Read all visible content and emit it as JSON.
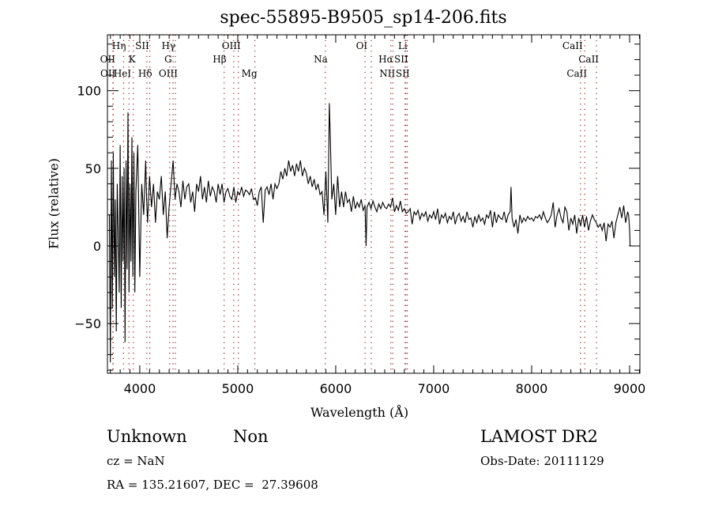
{
  "chart_data": {
    "type": "line",
    "title": "spec-55895-B9505_sp14-206.fits",
    "xlabel": "Wavelength (Å)",
    "ylabel": "Flux (relative)",
    "xlim": [
      3670,
      9105
    ],
    "ylim": [
      -82,
      136
    ],
    "xticks": [
      4000,
      5000,
      6000,
      7000,
      8000,
      9000
    ],
    "yticks": [
      -50,
      0,
      50,
      100
    ],
    "grid": false,
    "line_color": "#000000",
    "marker_color": "#8b1a1a",
    "series": [
      {
        "name": "spectrum",
        "x": [
          3690,
          3700,
          3710,
          3720,
          3730,
          3740,
          3750,
          3760,
          3770,
          3780,
          3790,
          3800,
          3810,
          3820,
          3830,
          3840,
          3850,
          3860,
          3870,
          3880,
          3890,
          3900,
          3910,
          3920,
          3930,
          3940,
          3950,
          3960,
          3980,
          4000,
          4020,
          4040,
          4060,
          4070,
          4080,
          4100,
          4120,
          4140,
          4160,
          4180,
          4200,
          4220,
          4240,
          4260,
          4280,
          4300,
          4320,
          4340,
          4360,
          4380,
          4400,
          4420,
          4440,
          4460,
          4480,
          4500,
          4520,
          4540,
          4560,
          4580,
          4600,
          4620,
          4640,
          4660,
          4680,
          4700,
          4720,
          4740,
          4760,
          4780,
          4800,
          4820,
          4840,
          4860,
          4880,
          4900,
          4920,
          4940,
          4960,
          4980,
          5000,
          5020,
          5040,
          5060,
          5080,
          5100,
          5120,
          5140,
          5160,
          5180,
          5200,
          5220,
          5240,
          5260,
          5280,
          5300,
          5320,
          5340,
          5360,
          5380,
          5400,
          5420,
          5440,
          5460,
          5480,
          5500,
          5520,
          5540,
          5560,
          5580,
          5600,
          5620,
          5640,
          5660,
          5680,
          5700,
          5720,
          5740,
          5760,
          5780,
          5800,
          5820,
          5840,
          5860,
          5880,
          5900,
          5920,
          5935,
          5945,
          5960,
          5980,
          6000,
          6020,
          6040,
          6060,
          6080,
          6100,
          6120,
          6140,
          6160,
          6180,
          6200,
          6220,
          6240,
          6260,
          6280,
          6300,
          6310,
          6320,
          6340,
          6360,
          6380,
          6400,
          6420,
          6440,
          6460,
          6480,
          6500,
          6520,
          6540,
          6560,
          6580,
          6600,
          6620,
          6640,
          6660,
          6680,
          6700,
          6720,
          6740,
          6760,
          6780,
          6800,
          6820,
          6840,
          6860,
          6880,
          6900,
          6920,
          6940,
          6960,
          6980,
          7000,
          7020,
          7040,
          7060,
          7080,
          7100,
          7120,
          7140,
          7160,
          7180,
          7200,
          7220,
          7240,
          7260,
          7280,
          7300,
          7320,
          7340,
          7360,
          7380,
          7400,
          7420,
          7440,
          7460,
          7480,
          7500,
          7520,
          7540,
          7560,
          7580,
          7600,
          7620,
          7640,
          7660,
          7680,
          7700,
          7720,
          7740,
          7760,
          7780,
          7790,
          7800,
          7820,
          7840,
          7860,
          7880,
          7900,
          7920,
          7940,
          7960,
          7980,
          8000,
          8020,
          8040,
          8060,
          8080,
          8100,
          8120,
          8140,
          8160,
          8180,
          8200,
          8220,
          8240,
          8260,
          8280,
          8300,
          8320,
          8340,
          8360,
          8380,
          8400,
          8420,
          8440,
          8460,
          8480,
          8500,
          8520,
          8540,
          8560,
          8580,
          8600,
          8620,
          8640,
          8660,
          8680,
          8700,
          8720,
          8740,
          8760,
          8780,
          8800,
          8820,
          8840,
          8860,
          8880,
          8900,
          8920,
          8940,
          8960,
          8980,
          8990,
          9000,
          9005
        ],
        "y": [
          20,
          -75,
          55,
          -40,
          60,
          -20,
          30,
          -55,
          40,
          10,
          -30,
          65,
          -40,
          45,
          -10,
          50,
          -62,
          55,
          -15,
          86,
          -30,
          40,
          -10,
          70,
          -20,
          60,
          -30,
          35,
          65,
          -20,
          40,
          20,
          55,
          30,
          15,
          45,
          25,
          40,
          15,
          35,
          30,
          45,
          20,
          35,
          5,
          25,
          40,
          55,
          30,
          40,
          35,
          25,
          42,
          30,
          38,
          40,
          28,
          35,
          22,
          40,
          35,
          45,
          30,
          38,
          28,
          42,
          32,
          38,
          35,
          28,
          40,
          33,
          40,
          28,
          35,
          37,
          32,
          30,
          38,
          28,
          35,
          33,
          38,
          32,
          36,
          35,
          33,
          37,
          30,
          31,
          26,
          35,
          38,
          15,
          36,
          38,
          33,
          40,
          30,
          40,
          37,
          40,
          48,
          43,
          50,
          45,
          55,
          48,
          52,
          45,
          53,
          48,
          55,
          45,
          50,
          47,
          40,
          45,
          38,
          43,
          36,
          40,
          33,
          35,
          20,
          48,
          15,
          92,
          70,
          30,
          40,
          20,
          45,
          25,
          35,
          25,
          35,
          28,
          30,
          22,
          32,
          24,
          28,
          25,
          30,
          23,
          26,
          0,
          25,
          28,
          24,
          29,
          25,
          22,
          27,
          24,
          28,
          25,
          24,
          27,
          25,
          31,
          22,
          26,
          23,
          29,
          22,
          24,
          21,
          22,
          24,
          14,
          22,
          20,
          23,
          17,
          21,
          19,
          22,
          16,
          20,
          18,
          22,
          17,
          24,
          14,
          20,
          18,
          21,
          15,
          19,
          17,
          22,
          14,
          19,
          21,
          16,
          19,
          15,
          22,
          17,
          18,
          12,
          19,
          15,
          20,
          16,
          18,
          14,
          20,
          18,
          23,
          12,
          22,
          15,
          20,
          18,
          17,
          22,
          15,
          20,
          22,
          38,
          18,
          12,
          17,
          8,
          20,
          15,
          18,
          16,
          19,
          17,
          18,
          16,
          19,
          18,
          20,
          17,
          22,
          18,
          15,
          17,
          20,
          28,
          12,
          20,
          24,
          18,
          15,
          25,
          22,
          10,
          18,
          14,
          20,
          8,
          18,
          13,
          20,
          12,
          19,
          10,
          16,
          20,
          17,
          15,
          12,
          14,
          10,
          15,
          3,
          14,
          12,
          16,
          5,
          15,
          20,
          25,
          18,
          26,
          15,
          22,
          20,
          10,
          0
        ]
      }
    ],
    "line_markers": [
      {
        "label": "Hη",
        "wavelength": 3835,
        "row": 0
      },
      {
        "label": "SII",
        "wavelength": 4072,
        "row": 0
      },
      {
        "label": "Hγ",
        "wavelength": 4340,
        "row": 0
      },
      {
        "label": "OIII",
        "wavelength": 5007,
        "row": 0
      },
      {
        "label": "OI",
        "wavelength": 6300,
        "row": 0
      },
      {
        "label": "Li",
        "wavelength": 6708,
        "row": 0
      },
      {
        "label": "CaII",
        "wavelength": 8498,
        "row": 0
      },
      {
        "label": "OII",
        "wavelength": 3726,
        "row": 1
      },
      {
        "label": "K",
        "wavelength": 3934,
        "row": 1
      },
      {
        "label": "G",
        "wavelength": 4305,
        "row": 1
      },
      {
        "label": "Hβ",
        "wavelength": 4861,
        "row": 1
      },
      {
        "label": "Na",
        "wavelength": 5894,
        "row": 1
      },
      {
        "label": "Hα",
        "wavelength": 6563,
        "row": 1
      },
      {
        "label": "SII",
        "wavelength": 6716,
        "row": 1
      },
      {
        "label": "CaII",
        "wavelength": 8662,
        "row": 1
      },
      {
        "label": "OII",
        "wavelength": 3729,
        "row": 2
      },
      {
        "label": "HeI",
        "wavelength": 3889,
        "row": 2
      },
      {
        "label": "Hδ",
        "wavelength": 4102,
        "row": 2
      },
      {
        "label": "OIII",
        "wavelength": 4363,
        "row": 2
      },
      {
        "label": "Mg",
        "wavelength": 5175,
        "row": 2
      },
      {
        "label": "NII",
        "wavelength": 6583,
        "row": 2
      },
      {
        "label": "SII",
        "wavelength": 6731,
        "row": 2
      },
      {
        "label": "CaII",
        "wavelength": 8542,
        "row": 2
      },
      {
        "label": "",
        "wavelength": 4959,
        "row": 0
      },
      {
        "label": "",
        "wavelength": 6363,
        "row": 0
      }
    ]
  },
  "info": {
    "class": "Unknown",
    "subclass": "Non",
    "cz": "cz = NaN",
    "coords": "RA = 135.21607, DEC =  27.39608",
    "survey": "LAMOST DR2",
    "obs_date": "Obs-Date: 20111129"
  }
}
